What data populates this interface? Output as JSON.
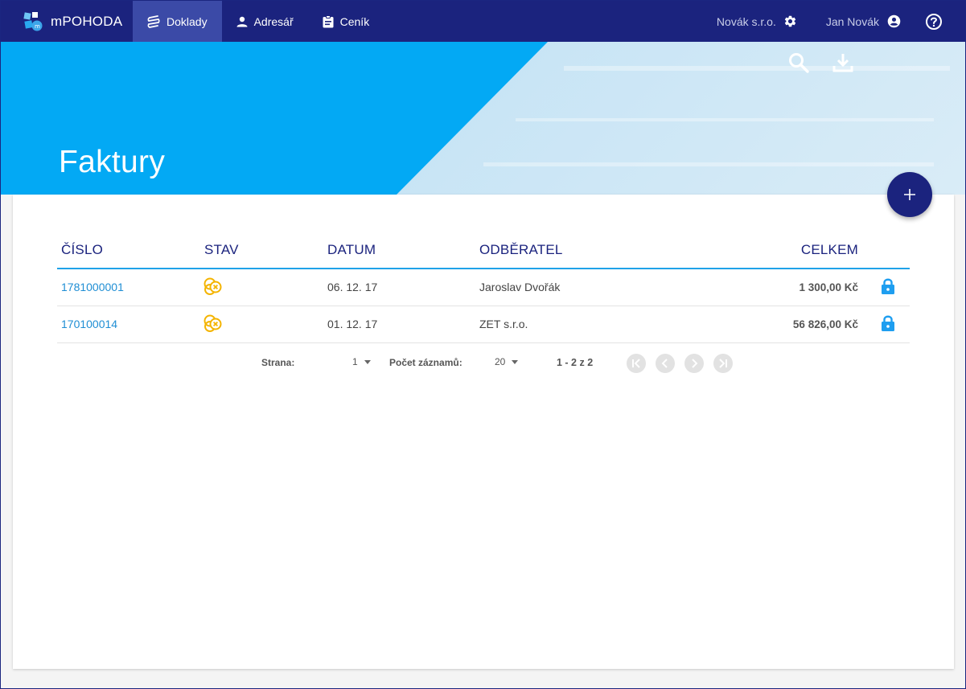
{
  "app": {
    "name": "mPOHODA"
  },
  "nav": {
    "items": [
      {
        "label": "Doklady",
        "active": true,
        "icon": "documents-stack-icon"
      },
      {
        "label": "Adresář",
        "active": false,
        "icon": "person-icon"
      },
      {
        "label": "Ceník",
        "active": false,
        "icon": "clipboard-icon"
      }
    ]
  },
  "topbar": {
    "company": "Novák s.r.o.",
    "user": "Jan Novák"
  },
  "page": {
    "title": "Faktury"
  },
  "table": {
    "columns": [
      "ČÍSLO",
      "STAV",
      "DATUM",
      "ODBĚRATEL",
      "CELKEM"
    ],
    "rows": [
      {
        "number": "1781000001",
        "status_icon": "unpaid-status-icon",
        "date": "06. 12. 17",
        "customer": "Jaroslav Dvořák",
        "total": "1 300,00 Kč",
        "locked": true
      },
      {
        "number": "170100014",
        "status_icon": "unpaid-status-icon",
        "date": "01. 12. 17",
        "customer": "ZET s.r.o.",
        "total": "56 826,00 Kč",
        "locked": true
      }
    ]
  },
  "pager": {
    "page_label": "Strana:",
    "page_value": "1",
    "records_label": "Počet záznamů:",
    "records_value": "20",
    "range": "1 - 2 z 2"
  },
  "colors": {
    "topbar": "#1b237e",
    "active_nav": "#3b4aa7",
    "hero": "#03a9f4",
    "link": "#1f8ed4",
    "status": "#f4b400"
  }
}
